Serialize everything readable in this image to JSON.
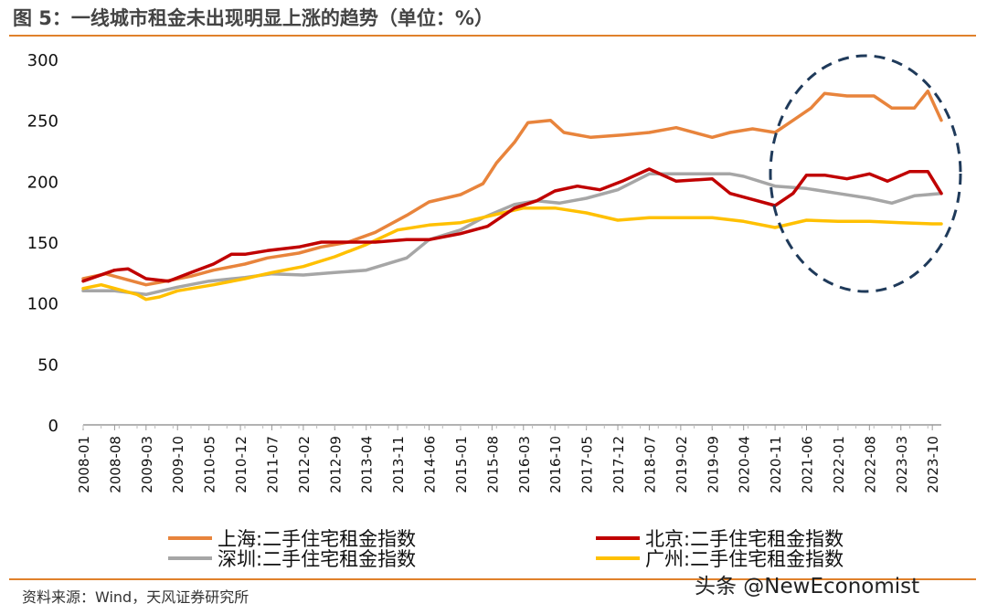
{
  "header": {
    "title": "图 5：一线城市租金未出现明显上涨的趋势（单位：%）"
  },
  "footer": {
    "source": "资料来源：Wind，天风证券研究所",
    "watermark": "头条 @NewEconomist"
  },
  "colors": {
    "shanghai": "#e8843c",
    "beijing": "#c00000",
    "shenzhen": "#a6a6a6",
    "guangzhou": "#ffc000",
    "accent_rule": "#e0812b",
    "ellipse": "#1f3a5a"
  },
  "chart_data": {
    "type": "line",
    "title": "一线城市租金未出现明显上涨的趋势",
    "xlabel": "",
    "ylabel": "",
    "ylim": [
      0,
      300
    ],
    "yticks": [
      0,
      50,
      100,
      150,
      200,
      250,
      300
    ],
    "x_start": "2008-01",
    "x_end": "2023-12",
    "x_tick_labels": [
      "2008-01",
      "2008-08",
      "2009-03",
      "2009-10",
      "2010-05",
      "2010-12",
      "2011-07",
      "2012-02",
      "2012-09",
      "2013-04",
      "2013-11",
      "2014-06",
      "2015-01",
      "2015-08",
      "2016-03",
      "2016-10",
      "2017-05",
      "2017-12",
      "2018-07",
      "2019-02",
      "2019-09",
      "2020-04",
      "2020-11",
      "2021-06",
      "2022-01",
      "2022-08",
      "2023-03",
      "2023-10"
    ],
    "annotation": "dashed ellipse highlighting 2020-11 to 2023-12",
    "series": [
      {
        "name": "上海:二手住宅租金指数",
        "key": "shanghai",
        "points": [
          [
            "2008-01",
            120
          ],
          [
            "2008-06",
            124
          ],
          [
            "2009-03",
            115
          ],
          [
            "2009-06",
            117
          ],
          [
            "2010-01",
            122
          ],
          [
            "2010-06",
            127
          ],
          [
            "2011-01",
            132
          ],
          [
            "2011-06",
            137
          ],
          [
            "2012-01",
            141
          ],
          [
            "2012-06",
            146
          ],
          [
            "2012-12",
            150
          ],
          [
            "2013-06",
            158
          ],
          [
            "2014-01",
            172
          ],
          [
            "2014-06",
            183
          ],
          [
            "2015-01",
            189
          ],
          [
            "2015-06",
            198
          ],
          [
            "2015-09",
            215
          ],
          [
            "2016-01",
            232
          ],
          [
            "2016-04",
            248
          ],
          [
            "2016-09",
            250
          ],
          [
            "2016-12",
            240
          ],
          [
            "2017-06",
            236
          ],
          [
            "2018-01",
            238
          ],
          [
            "2018-07",
            240
          ],
          [
            "2019-01",
            244
          ],
          [
            "2019-09",
            236
          ],
          [
            "2020-01",
            240
          ],
          [
            "2020-06",
            243
          ],
          [
            "2020-11",
            240
          ],
          [
            "2021-03",
            250
          ],
          [
            "2021-07",
            260
          ],
          [
            "2021-10",
            272
          ],
          [
            "2022-03",
            270
          ],
          [
            "2022-09",
            270
          ],
          [
            "2023-01",
            260
          ],
          [
            "2023-06",
            260
          ],
          [
            "2023-09",
            274
          ],
          [
            "2023-12",
            250
          ]
        ]
      },
      {
        "name": "北京:二手住宅租金指数",
        "key": "beijing",
        "points": [
          [
            "2008-01",
            118
          ],
          [
            "2008-08",
            127
          ],
          [
            "2008-11",
            128
          ],
          [
            "2009-03",
            120
          ],
          [
            "2009-08",
            118
          ],
          [
            "2010-01",
            125
          ],
          [
            "2010-06",
            132
          ],
          [
            "2010-10",
            140
          ],
          [
            "2011-01",
            140
          ],
          [
            "2011-06",
            143
          ],
          [
            "2012-01",
            146
          ],
          [
            "2012-06",
            150
          ],
          [
            "2013-01",
            150
          ],
          [
            "2013-06",
            150
          ],
          [
            "2014-01",
            152
          ],
          [
            "2014-06",
            152
          ],
          [
            "2015-01",
            157
          ],
          [
            "2015-07",
            163
          ],
          [
            "2016-01",
            178
          ],
          [
            "2016-06",
            184
          ],
          [
            "2016-10",
            192
          ],
          [
            "2017-03",
            196
          ],
          [
            "2017-08",
            193
          ],
          [
            "2018-01",
            200
          ],
          [
            "2018-07",
            210
          ],
          [
            "2019-01",
            200
          ],
          [
            "2019-09",
            202
          ],
          [
            "2020-01",
            190
          ],
          [
            "2020-06",
            185
          ],
          [
            "2020-11",
            180
          ],
          [
            "2021-03",
            190
          ],
          [
            "2021-06",
            205
          ],
          [
            "2021-10",
            205
          ],
          [
            "2022-03",
            202
          ],
          [
            "2022-08",
            206
          ],
          [
            "2022-12",
            200
          ],
          [
            "2023-05",
            208
          ],
          [
            "2023-09",
            208
          ],
          [
            "2023-12",
            190
          ]
        ]
      },
      {
        "name": "深圳:二手住宅租金指数",
        "key": "shenzhen",
        "points": [
          [
            "2008-01",
            110
          ],
          [
            "2008-08",
            110
          ],
          [
            "2009-03",
            107
          ],
          [
            "2009-10",
            113
          ],
          [
            "2010-05",
            118
          ],
          [
            "2011-01",
            121
          ],
          [
            "2011-07",
            124
          ],
          [
            "2012-02",
            123
          ],
          [
            "2012-09",
            125
          ],
          [
            "2013-04",
            127
          ],
          [
            "2014-01",
            137
          ],
          [
            "2014-06",
            152
          ],
          [
            "2015-01",
            160
          ],
          [
            "2015-06",
            170
          ],
          [
            "2016-01",
            181
          ],
          [
            "2016-06",
            184
          ],
          [
            "2016-11",
            182
          ],
          [
            "2017-05",
            186
          ],
          [
            "2017-12",
            193
          ],
          [
            "2018-07",
            206
          ],
          [
            "2019-02",
            206
          ],
          [
            "2019-09",
            206
          ],
          [
            "2020-01",
            206
          ],
          [
            "2020-04",
            204
          ],
          [
            "2020-11",
            196
          ],
          [
            "2021-06",
            194
          ],
          [
            "2022-01",
            190
          ],
          [
            "2022-08",
            186
          ],
          [
            "2023-01",
            182
          ],
          [
            "2023-06",
            188
          ],
          [
            "2023-12",
            190
          ]
        ]
      },
      {
        "name": "广州:二手住宅租金指数",
        "key": "guangzhou",
        "points": [
          [
            "2008-01",
            112
          ],
          [
            "2008-05",
            115
          ],
          [
            "2009-01",
            107
          ],
          [
            "2009-03",
            103
          ],
          [
            "2009-06",
            105
          ],
          [
            "2009-10",
            110
          ],
          [
            "2010-06",
            115
          ],
          [
            "2011-01",
            120
          ],
          [
            "2011-07",
            125
          ],
          [
            "2012-02",
            130
          ],
          [
            "2012-09",
            138
          ],
          [
            "2013-04",
            148
          ],
          [
            "2013-11",
            160
          ],
          [
            "2014-06",
            164
          ],
          [
            "2015-01",
            166
          ],
          [
            "2015-08",
            172
          ],
          [
            "2016-03",
            178
          ],
          [
            "2016-10",
            178
          ],
          [
            "2017-05",
            174
          ],
          [
            "2017-12",
            168
          ],
          [
            "2018-07",
            170
          ],
          [
            "2019-02",
            170
          ],
          [
            "2019-09",
            170
          ],
          [
            "2020-04",
            167
          ],
          [
            "2020-11",
            162
          ],
          [
            "2021-06",
            168
          ],
          [
            "2022-01",
            167
          ],
          [
            "2022-08",
            167
          ],
          [
            "2023-03",
            166
          ],
          [
            "2023-10",
            165
          ],
          [
            "2023-12",
            165
          ]
        ]
      }
    ]
  }
}
